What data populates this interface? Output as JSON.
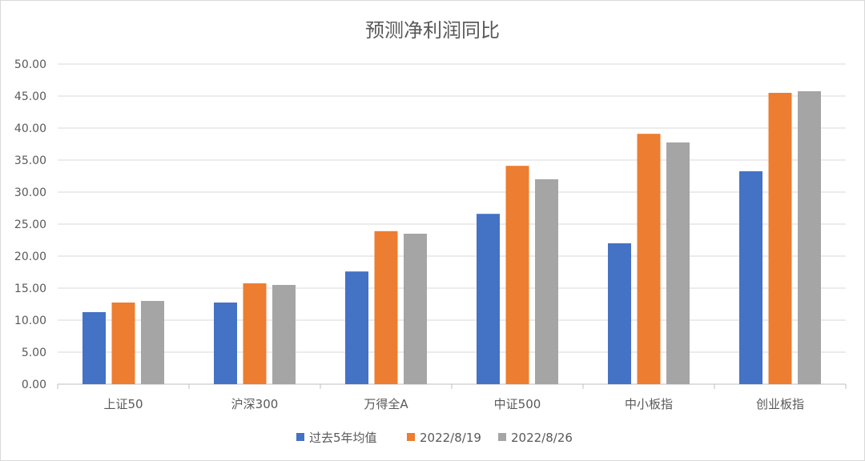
{
  "chart_data": {
    "type": "bar",
    "title": "预测净利润同比",
    "xlabel": "",
    "ylabel": "",
    "ylim": [
      0,
      50
    ],
    "ytick_step": 5,
    "ytick_labels": [
      "0.00",
      "5.00",
      "10.00",
      "15.00",
      "20.00",
      "25.00",
      "30.00",
      "35.00",
      "40.00",
      "45.00",
      "50.00"
    ],
    "grid": true,
    "legend_position": "bottom",
    "categories": [
      "上证50",
      "沪深300",
      "万得全A",
      "中证500",
      "中小板指",
      "创业板指"
    ],
    "series": [
      {
        "name": "过去5年均值",
        "color": "#4472C4",
        "values": [
          11.25,
          12.75,
          17.6,
          26.6,
          22.0,
          33.25
        ]
      },
      {
        "name": "2022/8/19",
        "color": "#ED7D31",
        "values": [
          12.75,
          15.75,
          23.9,
          34.1,
          39.1,
          45.5
        ]
      },
      {
        "name": "2022/8/26",
        "color": "#A5A5A5",
        "values": [
          13.0,
          15.5,
          23.5,
          32.0,
          37.75,
          45.75
        ]
      }
    ]
  }
}
